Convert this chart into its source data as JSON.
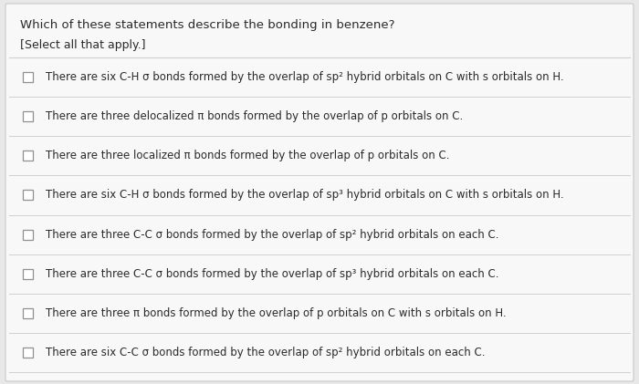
{
  "title": "Which of these statements describe the bonding in benzene?",
  "subtitle": "[Select all that apply.]",
  "background_color": "#e8e8e8",
  "panel_color": "#f8f8f8",
  "border_color": "#c8c8c8",
  "line_color": "#d0d0d0",
  "text_color": "#2a2a2a",
  "title_fontsize": 9.5,
  "subtitle_fontsize": 9.0,
  "item_fontsize": 8.5,
  "options": [
    "There are six C-H σ bonds formed by the overlap of sp² hybrid orbitals on C with s orbitals on H.",
    "There are three delocalized π bonds formed by the overlap of p orbitals on C.",
    "There are three localized π bonds formed by the overlap of p orbitals on C.",
    "There are six C-H σ bonds formed by the overlap of sp³ hybrid orbitals on C with s orbitals on H.",
    "There are three C-C σ bonds formed by the overlap of sp² hybrid orbitals on each C.",
    "There are three C-C σ bonds formed by the overlap of sp³ hybrid orbitals on each C.",
    "There are three π bonds formed by the overlap of p orbitals on C with s orbitals on H.",
    "There are six C-C σ bonds formed by the overlap of sp² hybrid orbitals on each C."
  ]
}
